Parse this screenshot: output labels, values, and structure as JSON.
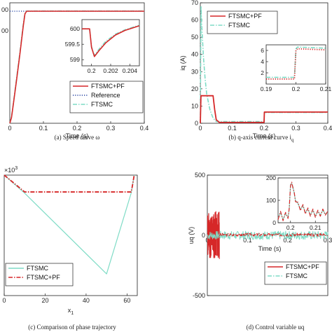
{
  "chart_data": [
    {
      "id": "a",
      "type": "line",
      "caption": "(a)  Speed curve ω",
      "xlabel": "Time (s)",
      "xlim": [
        0,
        0.4
      ],
      "xticks": [
        "0",
        "0.1",
        "0.2",
        "0.3",
        "0.4"
      ],
      "ylim": [
        0,
        600
      ],
      "yticks": [
        "00",
        "00"
      ],
      "series": [
        {
          "name": "FTSMC+PF",
          "color": "#d62728",
          "style": "solid",
          "x": [
            0,
            0.005,
            0.01,
            0.02,
            0.03,
            0.04,
            0.045,
            0.05,
            0.4
          ],
          "y": [
            0,
            30,
            95,
            230,
            370,
            520,
            585,
            600,
            600
          ]
        },
        {
          "name": "Reference",
          "color": "#1f3f9f",
          "style": "dotted",
          "x": [
            0,
            0.4
          ],
          "y": [
            600,
            600
          ]
        },
        {
          "name": "FTSMC",
          "color": "#7fdcc6",
          "style": "dashdot",
          "x": [
            0,
            0.005,
            0.01,
            0.02,
            0.03,
            0.04,
            0.045,
            0.05,
            0.4
          ],
          "y": [
            0,
            35,
            100,
            240,
            380,
            530,
            590,
            601,
            601
          ]
        }
      ],
      "legend": "lower-right",
      "inset": {
        "xlim": [
          0.199,
          0.205
        ],
        "ylim": [
          598.8,
          600.3
        ],
        "xticks": [
          "0.2",
          "0.202",
          "0.204"
        ],
        "yticks": [
          "600",
          "599.5",
          "599"
        ],
        "series": [
          {
            "name": "FTSMC+PF",
            "x": [
              0.199,
              0.1998,
              0.2,
              0.2003,
              0.2008,
              0.2015,
              0.2025,
              0.2035,
              0.2045,
              0.205
            ],
            "y": [
              600.0,
              600.0,
              599.4,
              599.1,
              599.3,
              599.55,
              599.8,
              599.95,
              600.05,
              600.1
            ]
          },
          {
            "name": "FTSMC",
            "x": [
              0.199,
              0.1998,
              0.2,
              0.2003,
              0.2008,
              0.2015,
              0.2025,
              0.2035,
              0.2045,
              0.205
            ],
            "y": [
              600.0,
              600.0,
              599.42,
              599.14,
              599.35,
              599.6,
              599.83,
              599.97,
              600.07,
              600.12
            ]
          }
        ]
      }
    },
    {
      "id": "b",
      "type": "line",
      "caption": "(b) q-axis current curve  i",
      "caption_sub": "q",
      "xlabel": "Time (s)",
      "ylabel": "iq (A)",
      "xlim": [
        0,
        0.4
      ],
      "xticks": [
        "0",
        "0.1",
        "0.2",
        "0.3",
        "0.4"
      ],
      "ylim": [
        0,
        70
      ],
      "yticks": [
        "0",
        "10",
        "20",
        "30",
        "40",
        "50",
        "60",
        "70"
      ],
      "series": [
        {
          "name": "FTSMC+PF",
          "color": "#d62728",
          "style": "solid",
          "x": [
            0,
            0.002,
            0.004,
            0.04,
            0.045,
            0.05,
            0.06,
            0.2,
            0.201,
            0.4
          ],
          "y": [
            0,
            16,
            16,
            16,
            8,
            2,
            0.5,
            0.5,
            6.5,
            6.5
          ]
        },
        {
          "name": "FTSMC",
          "color": "#7fdcc6",
          "style": "dashdot",
          "x": [
            0,
            0.002,
            0.005,
            0.01,
            0.015,
            0.02,
            0.03,
            0.04,
            0.05,
            0.2,
            0.201,
            0.4
          ],
          "y": [
            0,
            68,
            55,
            38,
            26,
            17,
            8,
            3,
            1,
            1,
            6.3,
            6.3
          ]
        }
      ],
      "legend": "top-right",
      "inset": {
        "xlim": [
          0.19,
          0.21
        ],
        "ylim": [
          0,
          7
        ],
        "xticks": [
          "0.19",
          "0.2",
          "0.21"
        ],
        "yticks": [
          "6",
          "4",
          "2"
        ],
        "series": [
          {
            "name": "FTSMC+PF",
            "x": [
              0.19,
              0.1995,
              0.2,
              0.2005,
              0.21
            ],
            "y": [
              0.9,
              0.9,
              6.0,
              6.3,
              6.1
            ]
          },
          {
            "name": "FTSMC",
            "x": [
              0.19,
              0.1995,
              0.2,
              0.2005,
              0.21
            ],
            "y": [
              1.2,
              1.2,
              6.3,
              6.6,
              6.4
            ]
          }
        ]
      }
    },
    {
      "id": "c",
      "type": "line",
      "caption": "(c)  Comparison of phase trajectory",
      "xlabel": "x",
      "xlabel_sub": "1",
      "exponent": "×10",
      "exponent_power": "3",
      "xlim": [
        0,
        65
      ],
      "xticks": [
        "0",
        "20",
        "40",
        "60"
      ],
      "ylim": [
        0,
        100
      ],
      "series": [
        {
          "name": "FTSMC",
          "color": "#7fdcc6",
          "style": "solid",
          "x": [
            0,
            10,
            50,
            62,
            63,
            63.5
          ],
          "y": [
            100,
            85,
            18,
            85,
            95,
            100
          ]
        },
        {
          "name": "FTSMC+PF",
          "color": "#d62728",
          "style": "dashdot",
          "x": [
            0,
            10,
            62,
            62.5,
            63,
            63.5
          ],
          "y": [
            100,
            86,
            86,
            90,
            95,
            100
          ]
        }
      ],
      "legend": "lower-left"
    },
    {
      "id": "d",
      "type": "line",
      "caption": "(d)  Control variable uq",
      "xlabel": "Time (s)",
      "ylabel": "uq (V)",
      "xlim": [
        0,
        0.3
      ],
      "xticks": [
        "0",
        "0.1",
        "0.2",
        "0.3"
      ],
      "ylim": [
        -500,
        500
      ],
      "yticks": [
        "500",
        "0",
        "-500"
      ],
      "series": [
        {
          "name": "FTSMC+PF",
          "color": "#d62728",
          "style": "solid"
        },
        {
          "name": "FTSMC",
          "color": "#7fdcc6",
          "style": "dashdot"
        }
      ],
      "legend": "lower-right",
      "inset": {
        "xlim": [
          0.195,
          0.215
        ],
        "ylim": [
          0,
          200
        ],
        "xticks": [
          "0.2",
          "0.21"
        ],
        "yticks": [
          "200",
          "100",
          "0"
        ]
      }
    }
  ]
}
